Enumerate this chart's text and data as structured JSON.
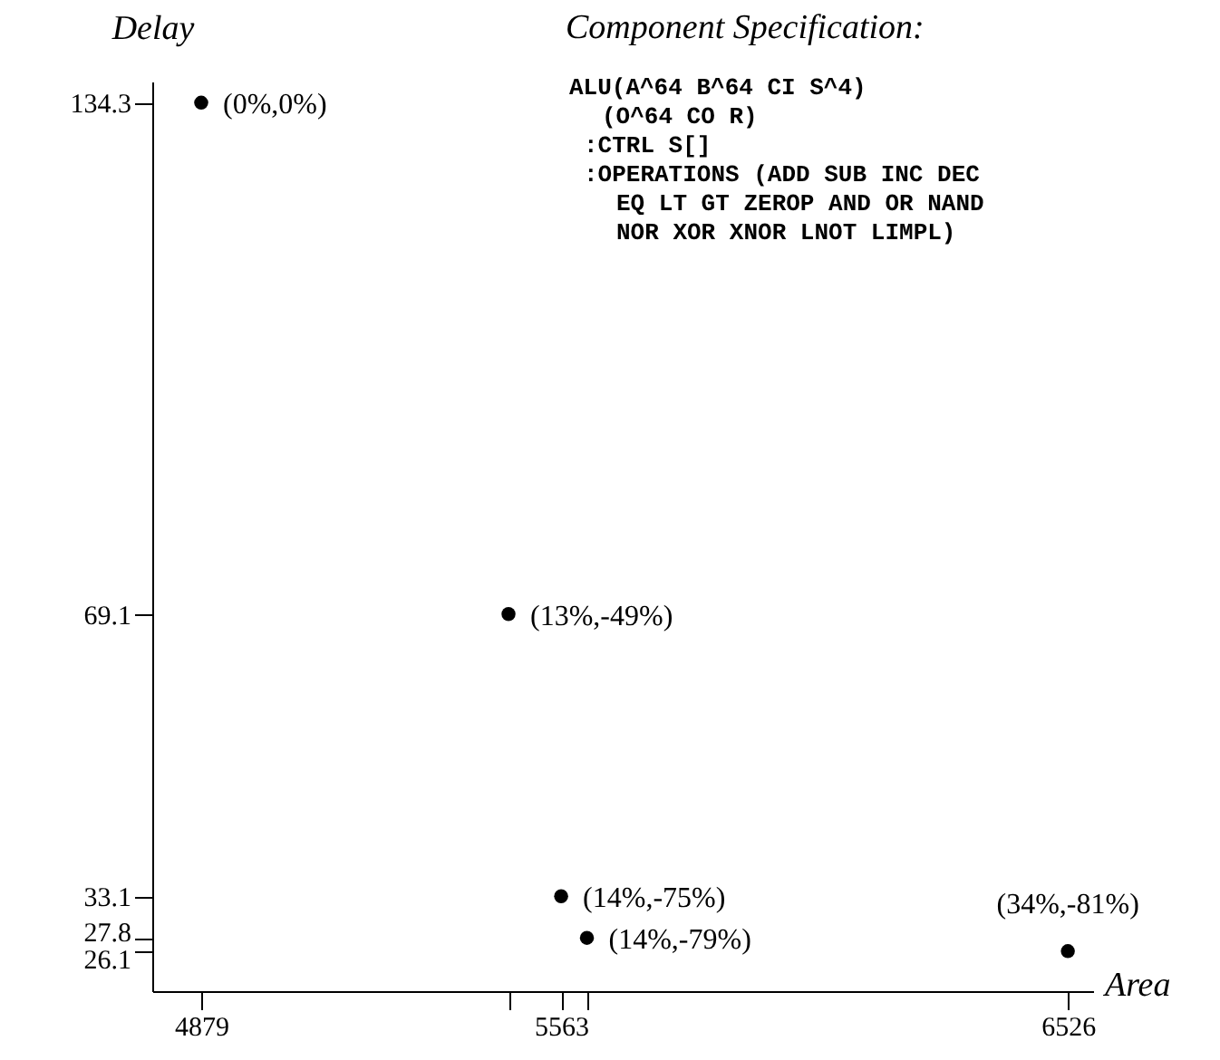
{
  "chart_data": {
    "type": "scatter",
    "title": "Component Specification:",
    "xlabel": "Area",
    "ylabel": "Delay",
    "x": [
      4879,
      5463,
      5563,
      5612,
      6526
    ],
    "values": [
      134.3,
      69.1,
      33.1,
      27.8,
      26.1
    ],
    "color": "#000000",
    "marker": "circle",
    "grid": false,
    "xlim": [
      4786,
      6574
    ],
    "ylim": [
      21,
      137
    ],
    "xticks": [
      4879,
      {
        "value": 5463,
        "label": null
      },
      5563,
      {
        "value": 5612,
        "label": null
      },
      6526
    ],
    "yticks": [
      134.3,
      69.1,
      33.1,
      27.8,
      26.1
    ],
    "annotations": [
      {
        "text": "(0%,0%)",
        "x": 4879,
        "y": 134.3
      },
      {
        "text": "(13%,-49%)",
        "x": 5463,
        "y": 69.1
      },
      {
        "text": "(14%,-75%)",
        "x": 5563,
        "y": 33.1
      },
      {
        "text": "(14%,-79%)",
        "x": 5612,
        "y": 27.8
      },
      {
        "text": "(34%,-81%)",
        "x": 6526,
        "y": 26.1
      },
      "ALU(A^64 B^64 CI S^4)",
      "(O^64 CO R)",
      ":CTRL S[]",
      ":OPERATIONS (ADD SUB INC DEC",
      "EQ LT GT ZEROP AND OR NAND",
      "NOR XOR XNOR LNOT LIMPL)"
    ]
  }
}
